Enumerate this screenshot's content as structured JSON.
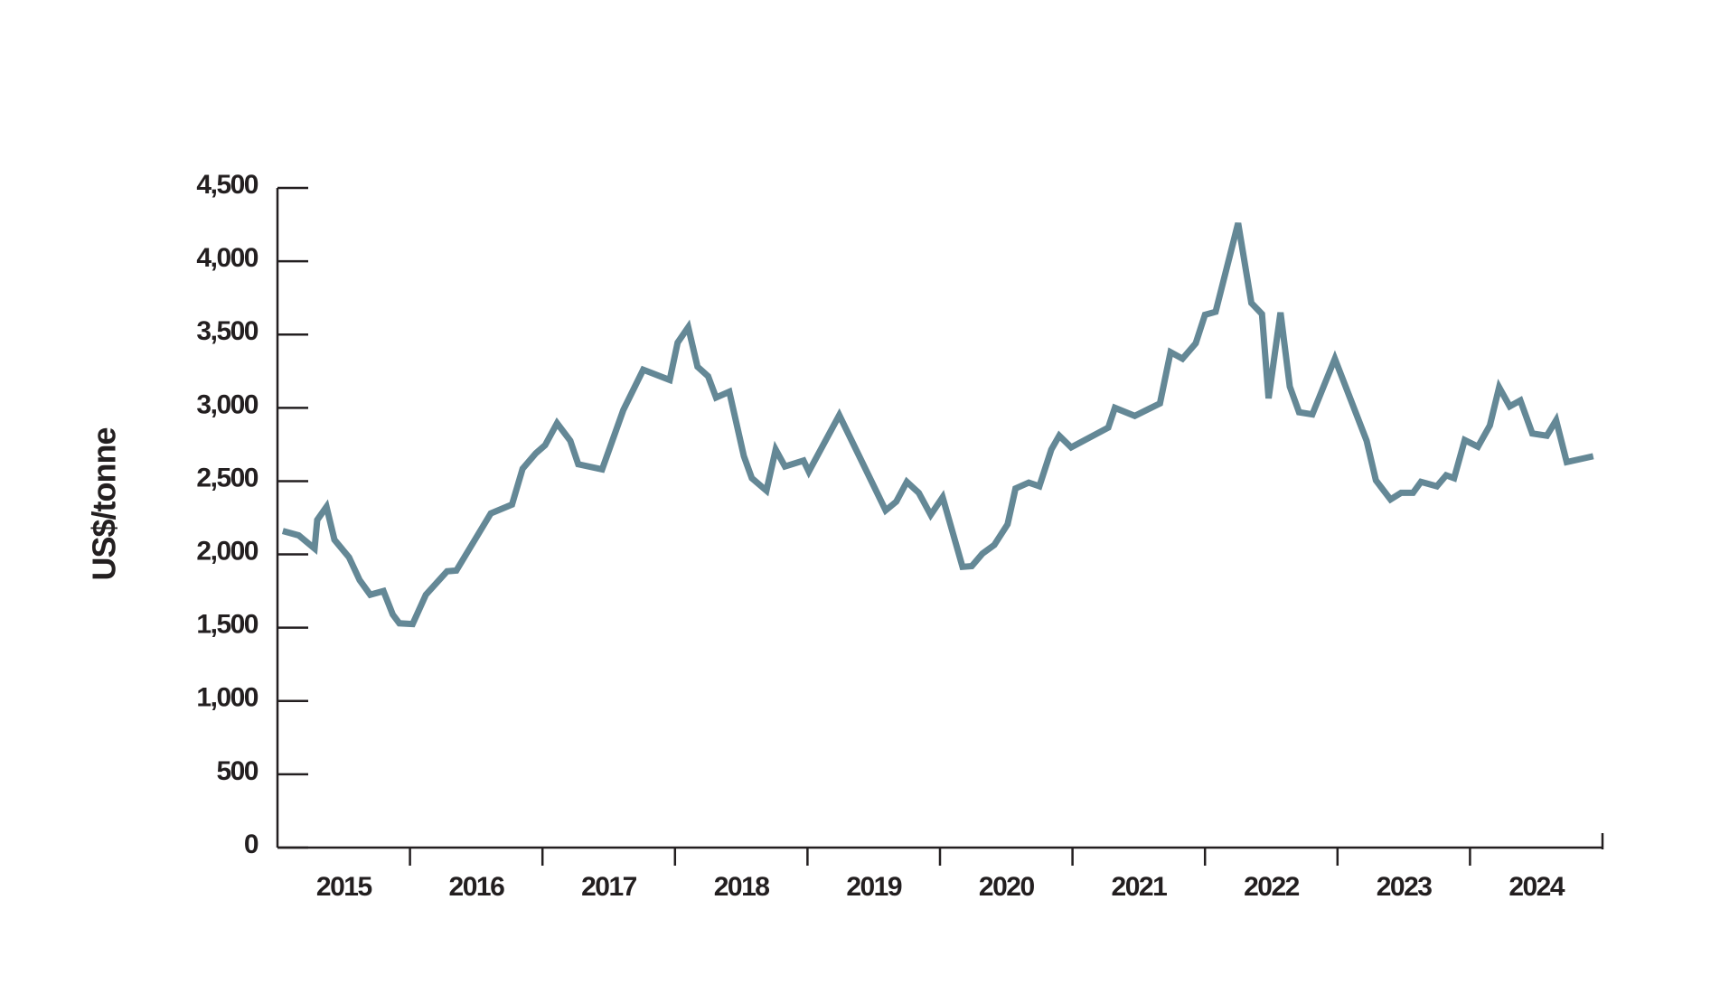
{
  "chart_data": {
    "type": "line",
    "y_label": "US$/tonne",
    "xlim": [
      2015,
      2025
    ],
    "xticks": [
      {
        "value": 2015.5,
        "label": "2015"
      },
      {
        "value": 2016.5,
        "label": "2016"
      },
      {
        "value": 2017.5,
        "label": "2017"
      },
      {
        "value": 2018.5,
        "label": "2018"
      },
      {
        "value": 2019.5,
        "label": "2019"
      },
      {
        "value": 2020.5,
        "label": "2020"
      },
      {
        "value": 2021.5,
        "label": "2021"
      },
      {
        "value": 2022.5,
        "label": "2022"
      },
      {
        "value": 2023.5,
        "label": "2023"
      },
      {
        "value": 2024.5,
        "label": "2024"
      }
    ],
    "ylim": [
      0,
      4500
    ],
    "yticks": [
      0,
      500,
      {
        "value": 1000,
        "label": "1,000"
      },
      {
        "value": 1500,
        "label": "1,500"
      },
      {
        "value": 2000,
        "label": "2,000"
      },
      {
        "value": 2500,
        "label": "2,500"
      },
      {
        "value": 3000,
        "label": "3,000"
      },
      {
        "value": 3500,
        "label": "3,500"
      },
      {
        "value": 4000,
        "label": "4,000"
      },
      {
        "value": 4500,
        "label": "4,500"
      }
    ],
    "grid": false,
    "x": [
      2015.04,
      2015.16,
      2015.28,
      2015.3,
      2015.37,
      2015.43,
      2015.54,
      2015.62,
      2015.7,
      2015.8,
      2015.87,
      2015.92,
      2016.02,
      2016.12,
      2016.28,
      2016.35,
      2016.61,
      2016.77,
      2016.85,
      2016.95,
      2017.02,
      2017.11,
      2017.21,
      2017.27,
      2017.45,
      2017.61,
      2017.76,
      2017.96,
      2018.02,
      2018.1,
      2018.17,
      2018.25,
      2018.31,
      2018.41,
      2018.52,
      2018.58,
      2018.69,
      2018.76,
      2018.83,
      2018.97,
      2019.01,
      2019.24,
      2019.59,
      2019.67,
      2019.75,
      2019.84,
      2019.93,
      2020.02,
      2020.17,
      2020.24,
      2020.32,
      2020.41,
      2020.51,
      2020.57,
      2020.67,
      2020.75,
      2020.84,
      2020.9,
      2020.99,
      2021.27,
      2021.32,
      2021.47,
      2021.66,
      2021.74,
      2021.83,
      2021.93,
      2022.0,
      2022.08,
      2022.25,
      2022.35,
      2022.43,
      2022.48,
      2022.57,
      2022.64,
      2022.71,
      2022.81,
      2022.98,
      2023.22,
      2023.29,
      2023.4,
      2023.48,
      2023.57,
      2023.63,
      2023.75,
      2023.82,
      2023.88,
      2023.96,
      2024.06,
      2024.15,
      2024.22,
      2024.3,
      2024.38,
      2024.47,
      2024.58,
      2024.65,
      2024.73,
      2024.93
    ],
    "series": [
      {
        "color": "#648896",
        "values": [
          2160,
          2130,
          2040,
          2235,
          2325,
          2100,
          1980,
          1825,
          1725,
          1750,
          1590,
          1530,
          1525,
          1725,
          1885,
          1890,
          2280,
          2340,
          2585,
          2690,
          2745,
          2895,
          2775,
          2615,
          2580,
          2985,
          3260,
          3190,
          3445,
          3550,
          3280,
          3215,
          3070,
          3110,
          2670,
          2520,
          2435,
          2715,
          2600,
          2640,
          2565,
          2950,
          2300,
          2360,
          2495,
          2420,
          2270,
          2390,
          1915,
          1920,
          2005,
          2065,
          2205,
          2450,
          2490,
          2465,
          2715,
          2810,
          2730,
          2865,
          3000,
          2945,
          3030,
          3380,
          3335,
          3440,
          3635,
          3655,
          4260,
          3715,
          3640,
          3065,
          3650,
          3145,
          2970,
          2955,
          3335,
          2775,
          2505,
          2375,
          2420,
          2420,
          2495,
          2465,
          2540,
          2520,
          2780,
          2735,
          2880,
          3140,
          3010,
          3050,
          2825,
          2810,
          2915,
          2630,
          2670
        ]
      }
    ]
  }
}
